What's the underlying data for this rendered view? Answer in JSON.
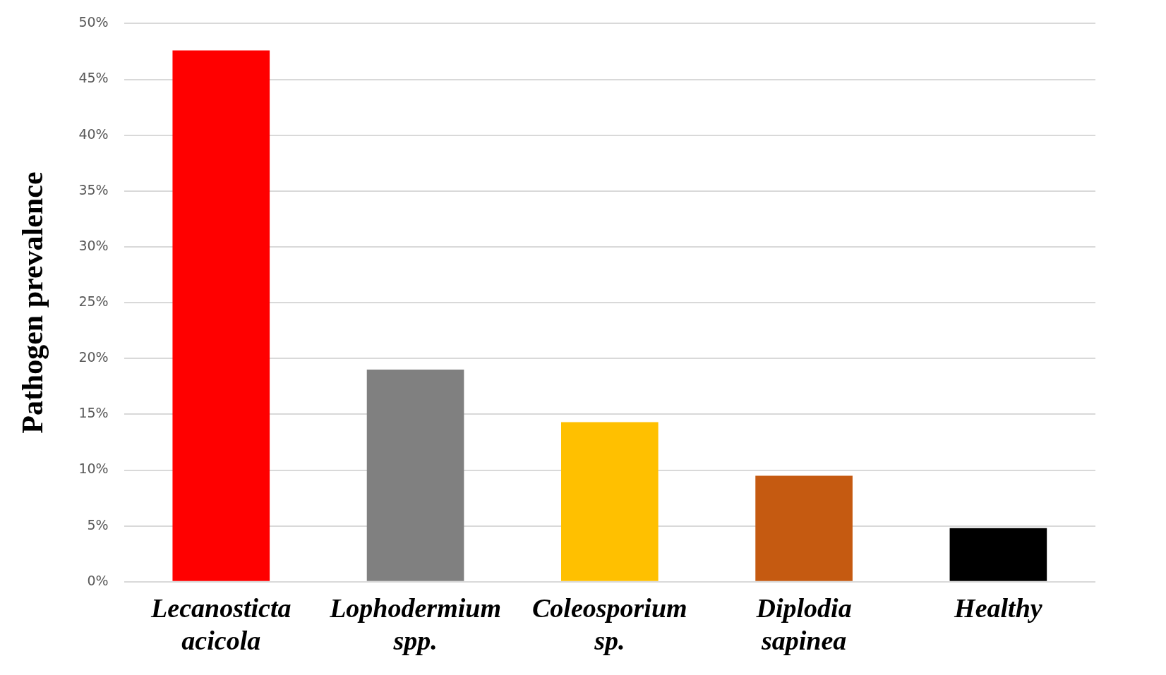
{
  "chart_data": {
    "type": "bar",
    "ylabel": "Pathogen prevalence",
    "categories": [
      "Lecanosticta acicola",
      "Lophodermium spp.",
      "Coleosporium sp.",
      "Diplodia sapinea",
      "Healthy"
    ],
    "values": [
      47.6,
      19.0,
      14.3,
      9.5,
      4.8
    ],
    "colors": [
      "#ff0000",
      "#808080",
      "#ffc000",
      "#c55a11",
      "#000000"
    ],
    "ylim": [
      0,
      50
    ],
    "yticks": [
      {
        "value": 0,
        "label": "0%"
      },
      {
        "value": 5,
        "label": "5%"
      },
      {
        "value": 10,
        "label": "10%"
      },
      {
        "value": 15,
        "label": "15%"
      },
      {
        "value": 20,
        "label": "20%"
      },
      {
        "value": 25,
        "label": "25%"
      },
      {
        "value": 30,
        "label": "30%"
      },
      {
        "value": 35,
        "label": "35%"
      },
      {
        "value": 40,
        "label": "40%"
      },
      {
        "value": 45,
        "label": "45%"
      },
      {
        "value": 50,
        "label": "50%"
      }
    ],
    "grid": "y"
  }
}
